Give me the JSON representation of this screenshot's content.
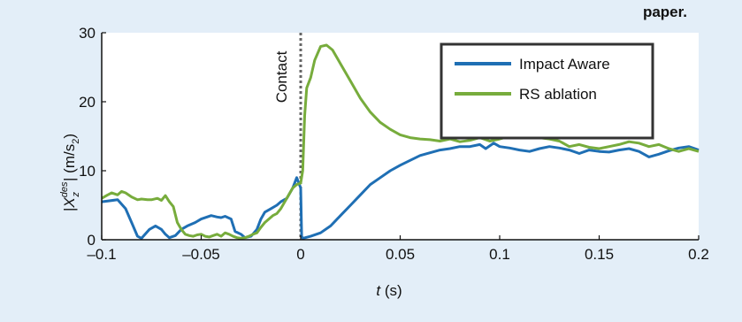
{
  "page": {
    "corner_text": "paper.",
    "background": "#e3eef8"
  },
  "chart_data": {
    "type": "line",
    "xlabel": {
      "var": "t",
      "unit": " (s)"
    },
    "ylabel": {
      "prefix": "|",
      "var": "X",
      "sub": "z",
      "sup": "des",
      "suffix": "| (m/s",
      "unitsub": "2",
      "close": ")"
    },
    "xlim": [
      -0.1,
      0.2
    ],
    "ylim": [
      0,
      30
    ],
    "xticks": [
      -0.1,
      -0.05,
      0,
      0.05,
      0.1,
      0.15,
      0.2
    ],
    "xtick_labels": [
      "–0.1",
      "–0.05",
      "0",
      "0.05",
      "0.1",
      "0.15",
      "0.2"
    ],
    "yticks": [
      0,
      10,
      20,
      30
    ],
    "ytick_labels": [
      "0",
      "10",
      "20",
      "30"
    ],
    "grid": false,
    "legend_position": "top-right",
    "annotation": {
      "text": "Contact",
      "x": 0
    },
    "series": [
      {
        "name": "Impact Aware",
        "color": "#1f6fb4",
        "x": [
          -0.1,
          -0.092,
          -0.088,
          -0.085,
          -0.082,
          -0.08,
          -0.076,
          -0.073,
          -0.07,
          -0.068,
          -0.066,
          -0.063,
          -0.06,
          -0.057,
          -0.053,
          -0.05,
          -0.045,
          -0.042,
          -0.04,
          -0.038,
          -0.035,
          -0.033,
          -0.03,
          -0.028,
          -0.025,
          -0.022,
          -0.02,
          -0.018,
          -0.015,
          -0.012,
          -0.01,
          -0.007,
          -0.004,
          -0.002,
          0.0,
          0.0005,
          0.001,
          0.005,
          0.01,
          0.015,
          0.02,
          0.025,
          0.03,
          0.035,
          0.04,
          0.045,
          0.05,
          0.055,
          0.06,
          0.065,
          0.07,
          0.075,
          0.08,
          0.085,
          0.09,
          0.093,
          0.097,
          0.1,
          0.105,
          0.11,
          0.115,
          0.12,
          0.125,
          0.13,
          0.135,
          0.14,
          0.145,
          0.15,
          0.155,
          0.16,
          0.165,
          0.17,
          0.175,
          0.18,
          0.185,
          0.19,
          0.195,
          0.2
        ],
        "values": [
          5.5,
          5.8,
          4.5,
          2.5,
          0.5,
          0.2,
          1.5,
          2.0,
          1.5,
          0.8,
          0.3,
          0.6,
          1.5,
          2.0,
          2.5,
          3.0,
          3.5,
          3.3,
          3.2,
          3.4,
          3.0,
          1.2,
          0.8,
          0.3,
          0.5,
          1.5,
          3.0,
          4.0,
          4.5,
          5.0,
          5.5,
          6.0,
          7.5,
          9.0,
          7.5,
          0.5,
          0.2,
          0.5,
          1.0,
          2.0,
          3.5,
          5.0,
          6.5,
          8.0,
          9.0,
          10.0,
          10.8,
          11.5,
          12.2,
          12.6,
          13.0,
          13.2,
          13.5,
          13.5,
          13.8,
          13.2,
          14.0,
          13.5,
          13.3,
          13.0,
          12.8,
          13.2,
          13.5,
          13.3,
          13.0,
          12.5,
          13.0,
          12.8,
          12.7,
          13.0,
          13.2,
          12.8,
          12.0,
          12.4,
          12.9,
          13.3,
          13.5,
          13.0
        ]
      },
      {
        "name": "RS ablation",
        "color": "#77ac3c",
        "x": [
          -0.1,
          -0.097,
          -0.095,
          -0.092,
          -0.09,
          -0.088,
          -0.085,
          -0.082,
          -0.08,
          -0.077,
          -0.075,
          -0.072,
          -0.07,
          -0.068,
          -0.066,
          -0.064,
          -0.062,
          -0.06,
          -0.058,
          -0.056,
          -0.054,
          -0.052,
          -0.05,
          -0.048,
          -0.046,
          -0.044,
          -0.042,
          -0.04,
          -0.038,
          -0.036,
          -0.034,
          -0.032,
          -0.03,
          -0.028,
          -0.026,
          -0.024,
          -0.022,
          -0.02,
          -0.018,
          -0.016,
          -0.014,
          -0.012,
          -0.01,
          -0.008,
          -0.006,
          -0.004,
          -0.002,
          0.0,
          0.001,
          0.002,
          0.003,
          0.005,
          0.007,
          0.01,
          0.013,
          0.016,
          0.02,
          0.025,
          0.03,
          0.035,
          0.04,
          0.045,
          0.05,
          0.055,
          0.06,
          0.065,
          0.07,
          0.075,
          0.08,
          0.085,
          0.09,
          0.095,
          0.1,
          0.105,
          0.11,
          0.115,
          0.12,
          0.125,
          0.13,
          0.135,
          0.14,
          0.145,
          0.15,
          0.155,
          0.16,
          0.165,
          0.17,
          0.175,
          0.18,
          0.185,
          0.19,
          0.195,
          0.2
        ],
        "values": [
          6.0,
          6.5,
          6.8,
          6.5,
          7.0,
          6.8,
          6.2,
          5.8,
          5.9,
          5.8,
          5.8,
          6.0,
          5.7,
          6.4,
          5.5,
          4.8,
          2.5,
          1.5,
          0.8,
          0.6,
          0.5,
          0.7,
          0.8,
          0.5,
          0.4,
          0.6,
          0.8,
          0.5,
          1.0,
          0.8,
          0.5,
          0.3,
          0.2,
          0.3,
          0.5,
          0.8,
          1.0,
          1.8,
          2.5,
          3.0,
          3.5,
          3.8,
          4.5,
          5.5,
          6.5,
          7.5,
          8.0,
          8.2,
          10.0,
          18.0,
          22.0,
          23.5,
          26.0,
          28.0,
          28.2,
          27.5,
          25.5,
          23.0,
          20.5,
          18.5,
          17.0,
          16.0,
          15.2,
          14.8,
          14.6,
          14.5,
          14.3,
          14.6,
          14.2,
          14.4,
          14.8,
          14.3,
          14.6,
          15.0,
          15.2,
          15.5,
          14.8,
          14.6,
          14.3,
          13.5,
          13.8,
          13.4,
          13.2,
          13.5,
          13.8,
          14.2,
          14.0,
          13.5,
          13.8,
          13.2,
          12.8,
          13.2,
          12.8
        ]
      }
    ]
  }
}
